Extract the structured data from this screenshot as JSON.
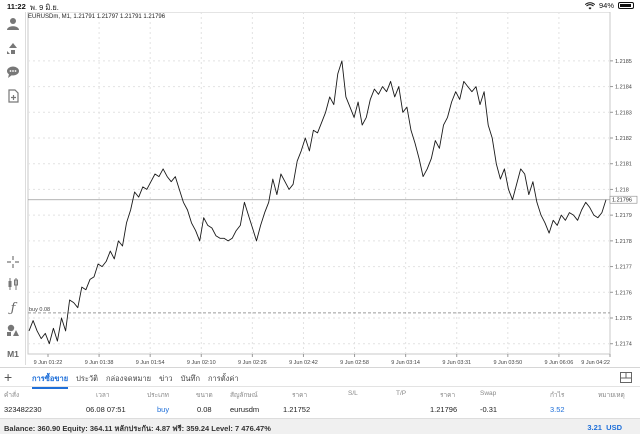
{
  "status": {
    "time": "11:22",
    "date": "พ. 9 มิ.ย.",
    "battery": "94%",
    "battery_level": 0.94
  },
  "chart": {
    "symbol_info": "EURUSDm, M1, 1.21791 1.21797 1.21791 1.21796",
    "current_price_label": "1.21796",
    "order_line_label": "buy 0.08"
  },
  "toolbar": {
    "timeframe_label": "M1"
  },
  "tabs": [
    {
      "label": "การซื้อขาย",
      "active": true
    },
    {
      "label": "ประวัติ",
      "active": false
    },
    {
      "label": "กล่องจดหมาย",
      "active": false
    },
    {
      "label": "ข่าว",
      "active": false
    },
    {
      "label": "บันทึก",
      "active": false
    },
    {
      "label": "การตั้งค่า",
      "active": false
    }
  ],
  "table": {
    "headers": [
      "คำสั่ง",
      "เวลา",
      "ประเภท",
      "ขนาด",
      "สัญลักษณ์",
      "ราคา",
      "S/L",
      "T/P",
      "ราคา",
      "Swap",
      "กำไร",
      "หมายเหตุ"
    ],
    "row": {
      "order": "323482230",
      "time": "06.08 07:51",
      "type": "buy",
      "size": "0.08",
      "symbol": "eurusdm",
      "open_price": "1.21752",
      "sl": "",
      "tp": "",
      "price": "1.21796",
      "swap": "-0.31",
      "profit": "3.52",
      "comment": ""
    }
  },
  "footer": {
    "balance_text": "Balance: 360.90 Equity: 364.11 หลักประกัน: 4.87 ฟรี: 359.24 Level: 7 476.47%",
    "total_profit": "3.21",
    "currency": "USD"
  },
  "chart_data": {
    "type": "line",
    "title": "EURUSDm, M1, 1.21791 1.21797 1.21791 1.21796",
    "xlabel": "",
    "ylabel": "",
    "ylim": [
      1.21736,
      1.21869
    ],
    "yticks": [
      1.2174,
      1.2175,
      1.2176,
      1.2177,
      1.2178,
      1.2179,
      1.218,
      1.2181,
      1.2182,
      1.2183,
      1.2184,
      1.2185
    ],
    "xticks": [
      "9 Jun 01:22",
      "9 Jun 01:38",
      "9 Jun 01:54",
      "9 Jun 02:10",
      "9 Jun 02:26",
      "9 Jun 02:42",
      "9 Jun 02:58",
      "9 Jun 03:14",
      "9 Jun 03:31",
      "9 Jun 03:50",
      "9 Jun 06:06",
      "9 Jun 04:22"
    ],
    "current_price": 1.21796,
    "order_price": 1.21752,
    "grid": true,
    "series": [
      {
        "values": [
          1.21745,
          1.21749,
          1.21745,
          1.21742,
          1.21744,
          1.2174,
          1.21746,
          1.21741,
          1.2175,
          1.21745,
          1.21757,
          1.21756,
          1.21754,
          1.21762,
          1.21761,
          1.21765,
          1.21766,
          1.21771,
          1.2177,
          1.21772,
          1.21776,
          1.21773,
          1.2178,
          1.21778,
          1.21787,
          1.21792,
          1.21799,
          1.21797,
          1.21801,
          1.218,
          1.21803,
          1.21806,
          1.21805,
          1.21808,
          1.21805,
          1.21803,
          1.21805,
          1.218,
          1.21795,
          1.21792,
          1.21787,
          1.21784,
          1.2178,
          1.21789,
          1.21786,
          1.21785,
          1.21782,
          1.21781,
          1.21781,
          1.2178,
          1.21781,
          1.21784,
          1.21786,
          1.21795,
          1.2179,
          1.21785,
          1.2178,
          1.21786,
          1.21791,
          1.21795,
          1.21804,
          1.21798,
          1.21806,
          1.21803,
          1.218,
          1.21802,
          1.21811,
          1.21815,
          1.2182,
          1.21815,
          1.21823,
          1.21822,
          1.21826,
          1.2183,
          1.21836,
          1.21833,
          1.21845,
          1.2185,
          1.21836,
          1.21832,
          1.21828,
          1.21834,
          1.21825,
          1.21828,
          1.21835,
          1.21839,
          1.21837,
          1.2184,
          1.21838,
          1.21842,
          1.21836,
          1.2184,
          1.2183,
          1.21832,
          1.21823,
          1.21818,
          1.21812,
          1.21805,
          1.21808,
          1.21812,
          1.21819,
          1.21816,
          1.21825,
          1.21828,
          1.21834,
          1.21838,
          1.21835,
          1.21842,
          1.2184,
          1.21838,
          1.2184,
          1.21833,
          1.21838,
          1.21825,
          1.2182,
          1.2181,
          1.21804,
          1.21808,
          1.218,
          1.21796,
          1.21802,
          1.21808,
          1.21806,
          1.21798,
          1.21803,
          1.21795,
          1.2179,
          1.21787,
          1.21783,
          1.21788,
          1.21786,
          1.2179,
          1.21788,
          1.21791,
          1.2179,
          1.21788,
          1.21792,
          1.21795,
          1.21793,
          1.2179,
          1.21789,
          1.21791,
          1.21796
        ]
      }
    ]
  }
}
